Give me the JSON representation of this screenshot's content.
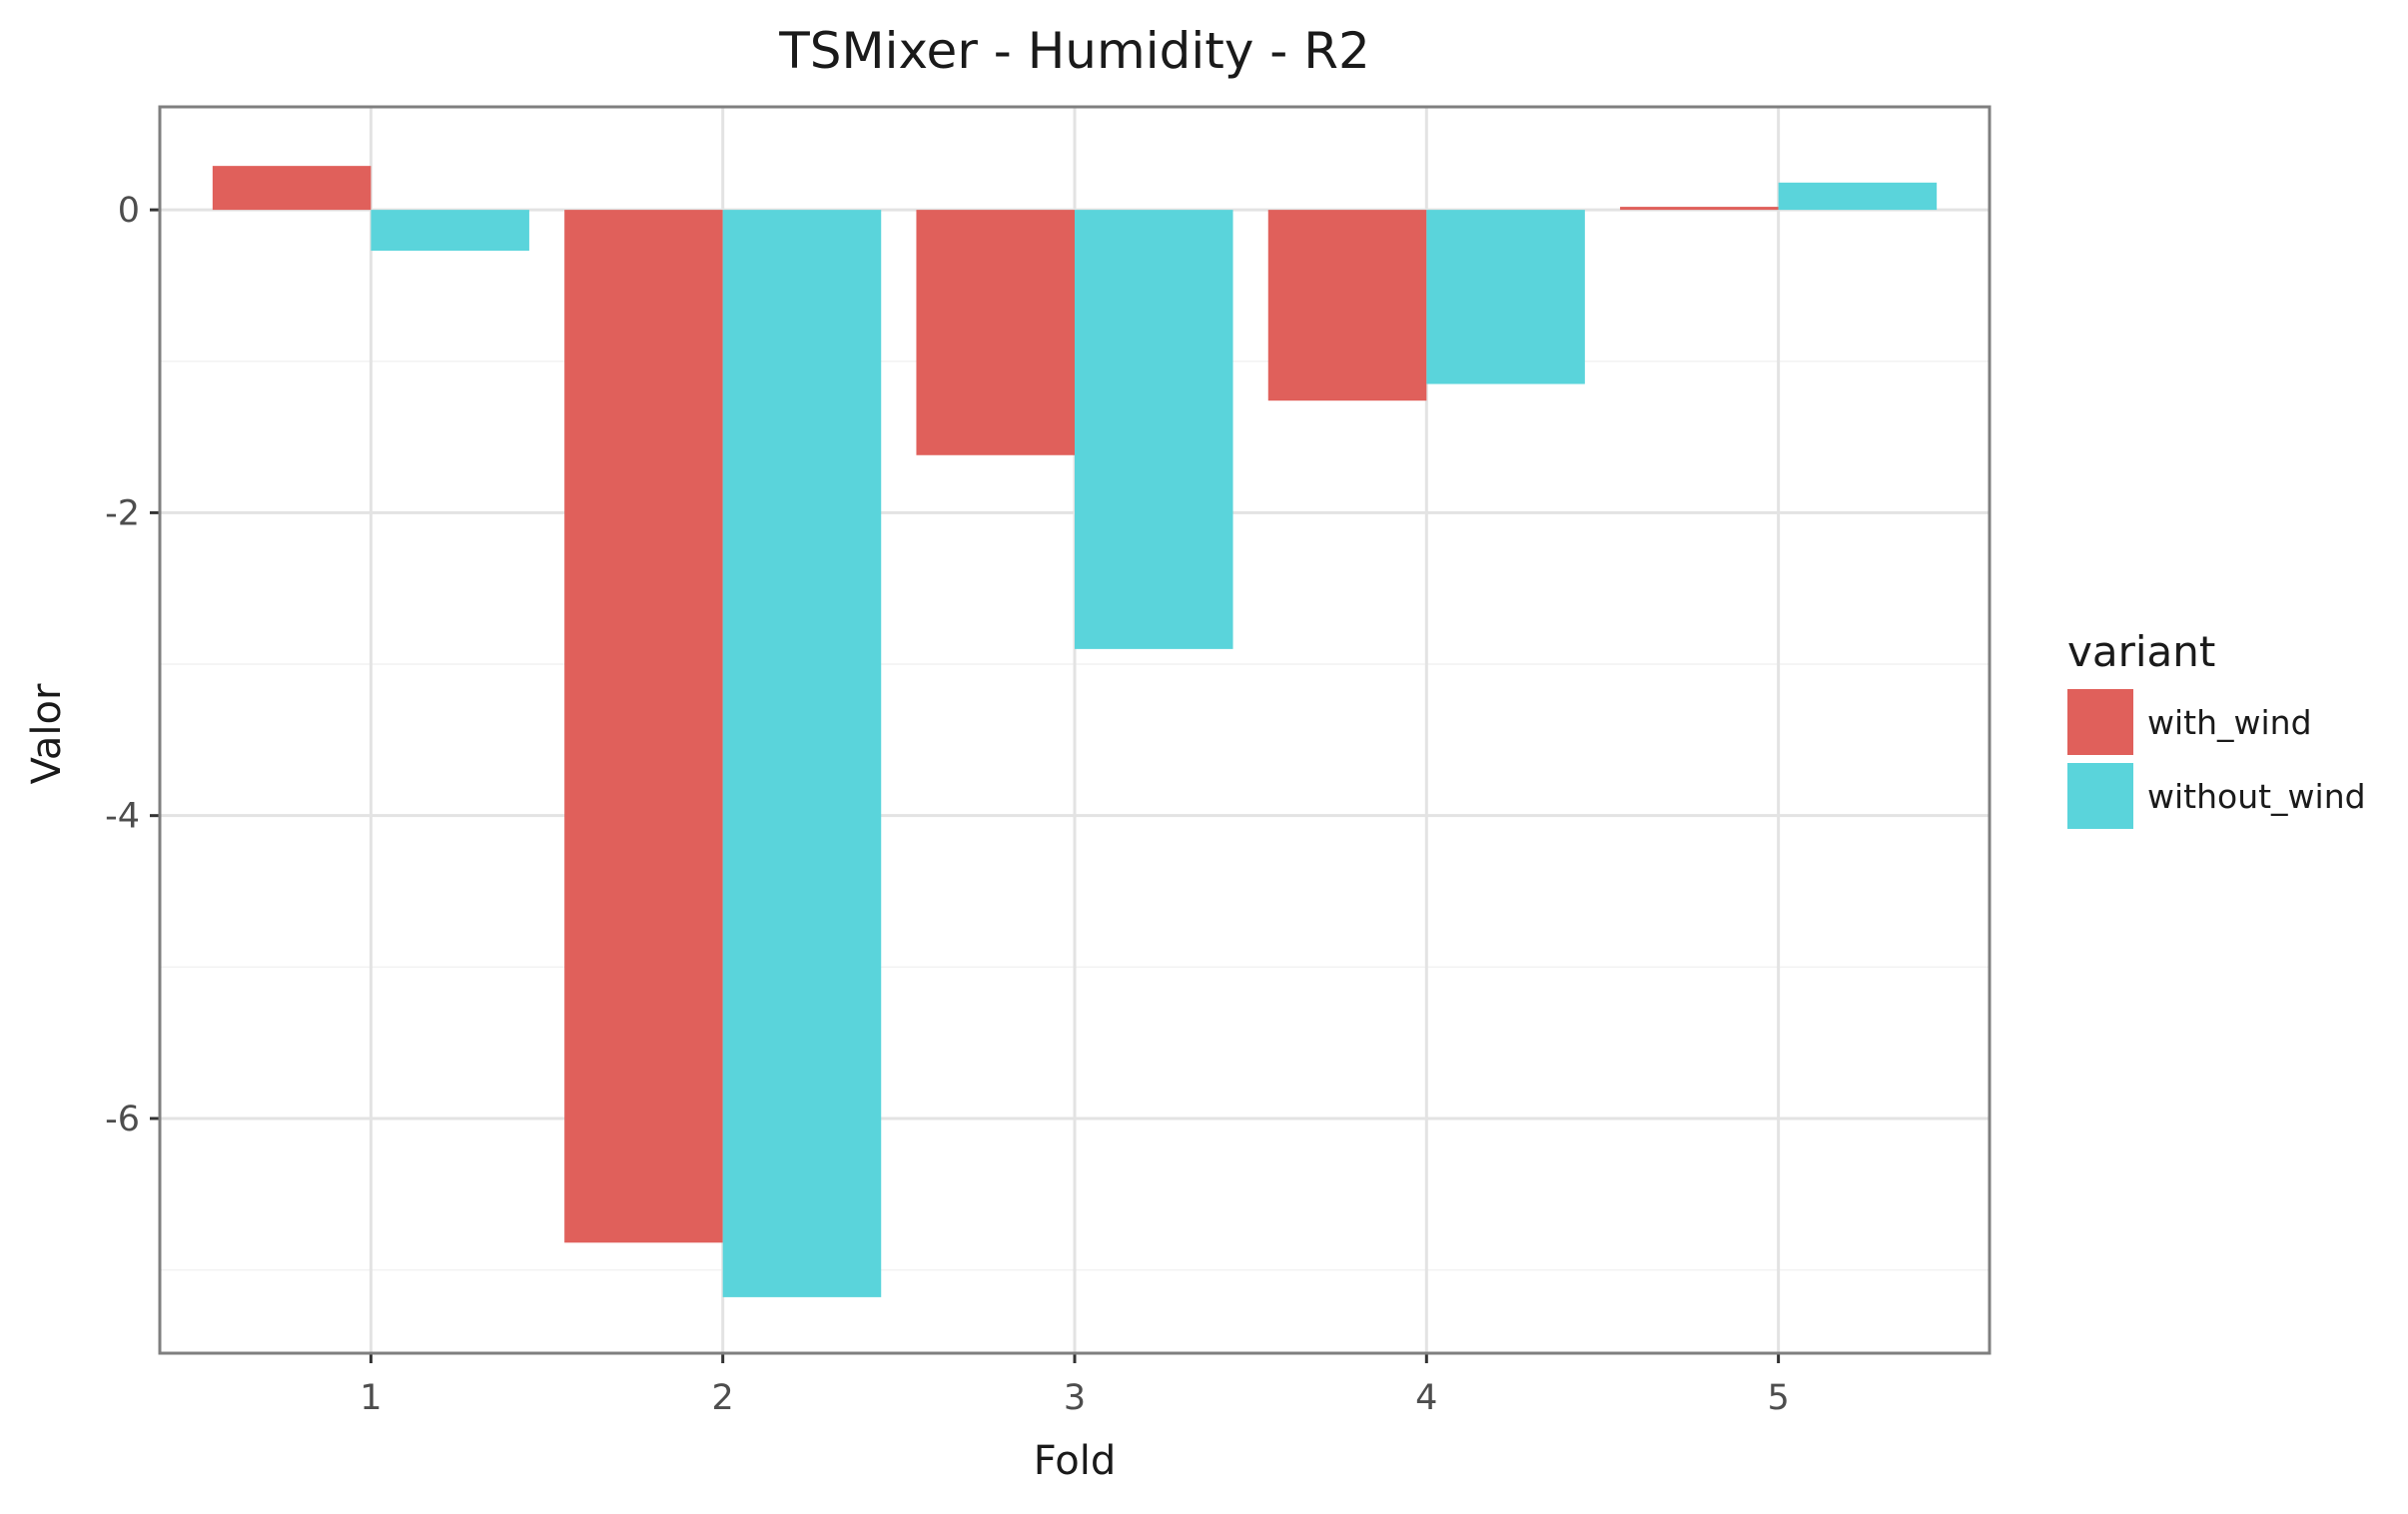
{
  "chart_data": {
    "type": "bar",
    "title": "TSMixer - Humidity - R2",
    "xlabel": "Fold",
    "ylabel": "Valor",
    "categories": [
      "1",
      "2",
      "3",
      "4",
      "5"
    ],
    "series": [
      {
        "name": "with_wind",
        "color": "#E0605B",
        "values": [
          0.29,
          -6.82,
          -1.62,
          -1.26,
          0.02
        ]
      },
      {
        "name": "without_wind",
        "color": "#5AD4DB",
        "values": [
          -0.27,
          -7.18,
          -2.9,
          -1.15,
          0.18
        ]
      }
    ],
    "ylim": [
      -7.55,
      0.68
    ],
    "yticks": [
      0,
      -2,
      -4,
      -6
    ],
    "ytick_labels": [
      "0",
      "-2",
      "-4",
      "-6"
    ],
    "grid": true,
    "legend": {
      "title": "variant",
      "position": "right"
    }
  }
}
